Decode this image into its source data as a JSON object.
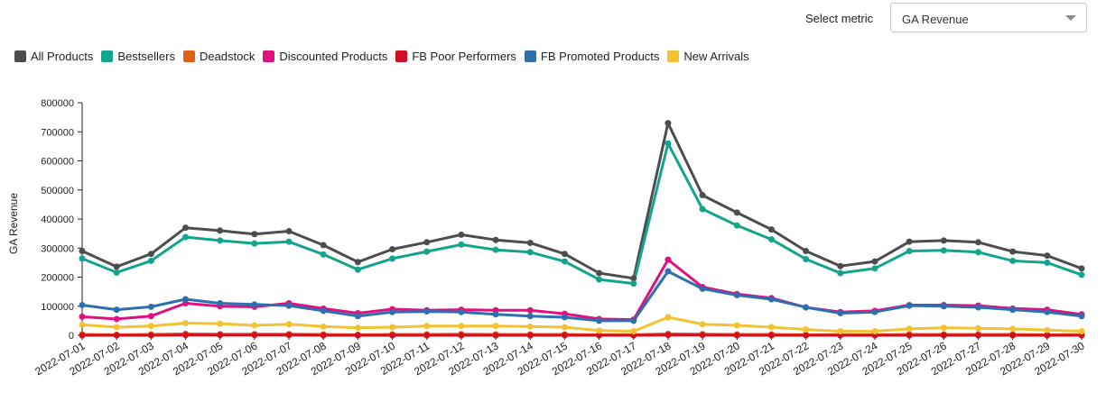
{
  "controls": {
    "metric_label": "Select metric",
    "metric_value": "GA Revenue"
  },
  "chart_data": {
    "type": "line",
    "title": "",
    "xlabel": "",
    "ylabel": "GA Revenue",
    "ylim": [
      0,
      800000
    ],
    "yticks": [
      "0",
      "100000",
      "200000",
      "300000",
      "400000",
      "500000",
      "600000",
      "700000",
      "800000"
    ],
    "yticks_values": [
      0,
      100000,
      200000,
      300000,
      400000,
      500000,
      600000,
      700000,
      800000
    ],
    "grid": false,
    "legend_position": "top-left",
    "categories": [
      "2022-07-01",
      "2022-07-02",
      "2022-07-03",
      "2022-07-04",
      "2022-07-05",
      "2022-07-06",
      "2022-07-07",
      "2022-07-08",
      "2022-07-09",
      "2022-07-10",
      "2022-07-11",
      "2022-07-12",
      "2022-07-13",
      "2022-07-14",
      "2022-07-15",
      "2022-07-16",
      "2022-07-17",
      "2022-07-18",
      "2022-07-19",
      "2022-07-20",
      "2022-07-21",
      "2022-07-22",
      "2022-07-23",
      "2022-07-24",
      "2022-07-25",
      "2022-07-26",
      "2022-07-27",
      "2022-07-28",
      "2022-07-29",
      "2022-07-30"
    ],
    "series": [
      {
        "name": "All Products",
        "color": "#4d4d4d",
        "values": [
          290000,
          236000,
          280000,
          370000,
          360000,
          348000,
          358000,
          310000,
          252000,
          296000,
          320000,
          346000,
          328000,
          318000,
          280000,
          214000,
          196000,
          730000,
          482000,
          422000,
          364000,
          290000,
          238000,
          254000,
          322000,
          326000,
          320000,
          288000,
          274000,
          230000
        ]
      },
      {
        "name": "Bestsellers",
        "color": "#12a58b",
        "values": [
          264000,
          216000,
          256000,
          338000,
          326000,
          316000,
          322000,
          278000,
          226000,
          264000,
          288000,
          312000,
          294000,
          286000,
          254000,
          192000,
          178000,
          660000,
          434000,
          378000,
          330000,
          262000,
          214000,
          230000,
          290000,
          292000,
          286000,
          256000,
          250000,
          208000
        ]
      },
      {
        "name": "Deadstock",
        "color": "#e0601a",
        "values": [
          3000,
          2000,
          3000,
          5000,
          4000,
          4000,
          4000,
          3000,
          2000,
          3000,
          3000,
          4000,
          3000,
          3000,
          3000,
          2000,
          2000,
          5000,
          4000,
          3000,
          3000,
          2000,
          2000,
          2000,
          3000,
          3000,
          3000,
          3000,
          2000,
          2000
        ]
      },
      {
        "name": "Discounted Products",
        "color": "#e0117f",
        "values": [
          64000,
          56000,
          66000,
          110000,
          100000,
          98000,
          110000,
          92000,
          76000,
          90000,
          86000,
          88000,
          86000,
          86000,
          74000,
          56000,
          54000,
          260000,
          166000,
          142000,
          128000,
          96000,
          80000,
          84000,
          104000,
          104000,
          102000,
          92000,
          88000,
          72000
        ]
      },
      {
        "name": "FB Poor Performers",
        "color": "#d10f23",
        "values": [
          0,
          0,
          0,
          1000,
          1000,
          1000,
          1000,
          0,
          0,
          0,
          0,
          0,
          0,
          0,
          0,
          0,
          0,
          1000,
          1000,
          0,
          0,
          0,
          0,
          0,
          0,
          0,
          0,
          0,
          0,
          0
        ]
      },
      {
        "name": "FB Promoted Products",
        "color": "#2e6faf",
        "values": [
          104000,
          88000,
          98000,
          124000,
          110000,
          106000,
          102000,
          84000,
          66000,
          80000,
          82000,
          80000,
          72000,
          66000,
          62000,
          50000,
          50000,
          220000,
          160000,
          138000,
          124000,
          96000,
          76000,
          80000,
          102000,
          100000,
          96000,
          88000,
          80000,
          66000
        ]
      },
      {
        "name": "New Arrivals",
        "color": "#f1c232",
        "values": [
          36000,
          28000,
          32000,
          42000,
          40000,
          34000,
          38000,
          30000,
          26000,
          28000,
          32000,
          32000,
          32000,
          30000,
          28000,
          16000,
          14000,
          62000,
          38000,
          34000,
          28000,
          20000,
          14000,
          14000,
          22000,
          26000,
          24000,
          22000,
          18000,
          14000
        ]
      }
    ]
  }
}
